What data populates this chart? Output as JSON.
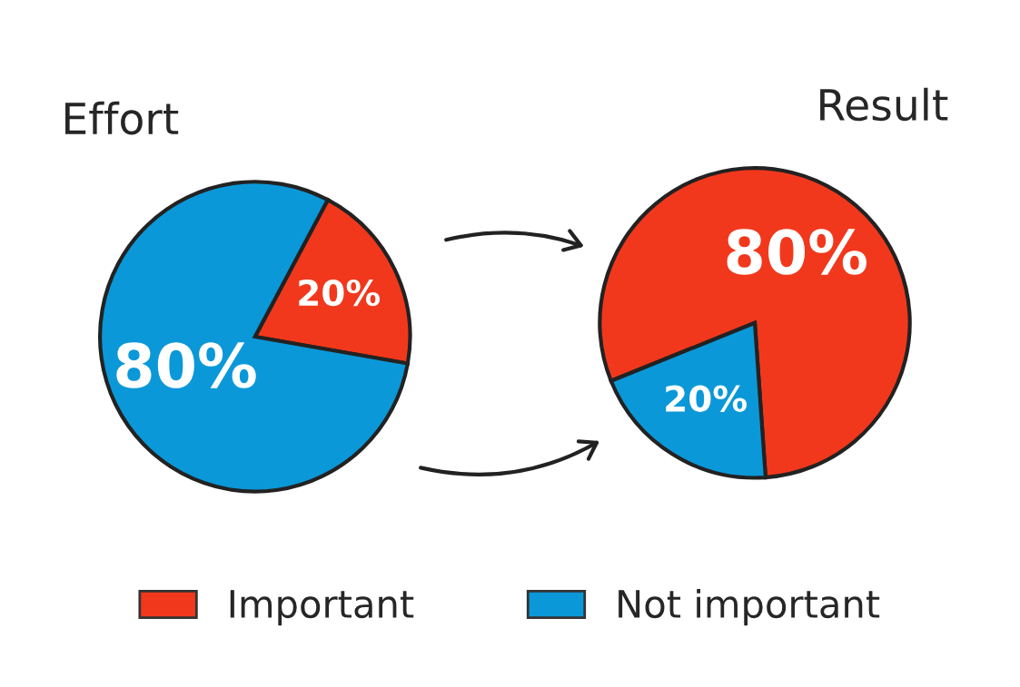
{
  "chart_data": [
    {
      "type": "pie",
      "title": "Effort",
      "categories": [
        "Important",
        "Not important"
      ],
      "values": [
        20,
        80
      ],
      "colors": [
        "#f2381c",
        "#0b98d8"
      ],
      "value_labels": [
        "20%",
        "80%"
      ],
      "legend": "bottom"
    },
    {
      "type": "pie",
      "title": "Result",
      "categories": [
        null,
        null
      ],
      "values": [
        80,
        20
      ],
      "colors": [
        "#f2381c",
        "#0b98d8"
      ],
      "value_labels": [
        "80%",
        "20%"
      ]
    }
  ]
}
